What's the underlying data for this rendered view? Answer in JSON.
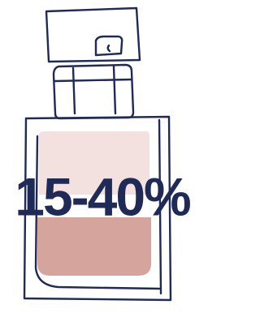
{
  "label": "15-40%"
}
